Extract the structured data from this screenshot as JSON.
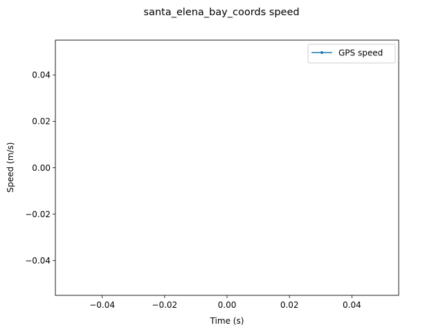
{
  "chart_data": {
    "type": "line",
    "title": "santa_elena_bay_coords speed",
    "xlabel": "Time (s)",
    "ylabel": "Speed (m/s)",
    "xlim": [
      -0.055,
      0.055
    ],
    "ylim": [
      -0.055,
      0.055
    ],
    "xticks": [
      -0.04,
      -0.02,
      0.0,
      0.02,
      0.04
    ],
    "xtick_labels": [
      "−0.04",
      "−0.02",
      "0.00",
      "0.02",
      "0.04"
    ],
    "yticks": [
      -0.04,
      -0.02,
      0.0,
      0.02,
      0.04
    ],
    "ytick_labels": [
      "−0.04",
      "−0.02",
      "0.00",
      "0.02",
      "0.04"
    ],
    "grid": false,
    "legend_position": "top-right",
    "series": [
      {
        "name": "GPS speed",
        "color": "#1f77b4",
        "marker": "point",
        "x": [],
        "y": []
      }
    ]
  }
}
